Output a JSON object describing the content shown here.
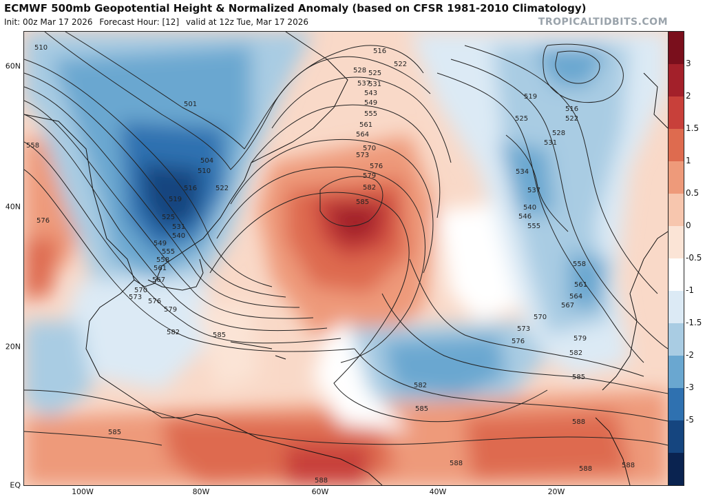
{
  "header": {
    "title": "ECMWF 500mb Geopotential Height & Normalized Anomaly (based on CFSR 1981-2010 Climatology)",
    "init": "Init: 00z Mar 17 2026",
    "forecast_hour": "Forecast Hour: [12]",
    "valid": "valid at 12z Tue, Mar 17 2026",
    "brand": "TROPICALTIDBITS.COM"
  },
  "axes": {
    "lat_labels": [
      "60N",
      "40N",
      "20N",
      "EQ"
    ],
    "lon_labels": [
      "100W",
      "80W",
      "60W",
      "40W",
      "20W"
    ]
  },
  "colorbar": {
    "ticks": [
      "3",
      "2",
      "1.5",
      "1",
      "0.5",
      "0",
      "-0.5",
      "-1",
      "-1.5",
      "-2",
      "-3",
      "-5"
    ],
    "colors": [
      "#7a0f1c",
      "#a3202a",
      "#c8403a",
      "#de6b4f",
      "#ee9a7a",
      "#f7c6ae",
      "#fbe4d6",
      "#ffffff",
      "#dceaf5",
      "#a9cce3",
      "#6aa7d0",
      "#2f71b0",
      "#15457f",
      "#0a2350"
    ]
  },
  "contour_labels": [
    "510",
    "501",
    "504",
    "510",
    "516",
    "519",
    "522",
    "525",
    "531",
    "540",
    "549",
    "555",
    "558",
    "561",
    "567",
    "570",
    "573",
    "576",
    "579",
    "582",
    "585",
    "558",
    "576",
    "516",
    "522",
    "525",
    "528",
    "531",
    "537",
    "543",
    "549",
    "555",
    "561",
    "564",
    "570",
    "573",
    "576",
    "579",
    "582",
    "585",
    "519",
    "516",
    "522",
    "525",
    "528",
    "531",
    "534",
    "537",
    "540",
    "546",
    "555",
    "558",
    "561",
    "564",
    "567",
    "570",
    "573",
    "576",
    "579",
    "582",
    "585",
    "582",
    "585",
    "585",
    "588",
    "588",
    "588",
    "588",
    "588"
  ],
  "anomaly_centers": [
    {
      "name": "great-lakes-trough",
      "value": -2.5
    },
    {
      "name": "central-atlantic-ridge",
      "value": 2.5
    },
    {
      "name": "northeast-atlantic-trough",
      "value": -1.5
    },
    {
      "name": "subtropical-atlantic-low",
      "value": -1.5
    },
    {
      "name": "labrador-sea-low",
      "value": -1.5
    }
  ]
}
